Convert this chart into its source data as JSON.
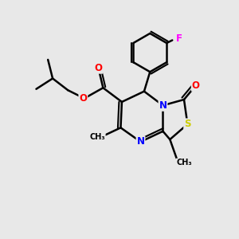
{
  "background_color": "#e8e8e8",
  "atom_colors": {
    "C": "#000000",
    "N": "#0000ff",
    "O": "#ff0000",
    "S": "#cccc00",
    "F": "#ff00ff"
  },
  "bond_color": "#000000",
  "bond_width": 1.8,
  "figsize": [
    3.0,
    3.0
  ],
  "dpi": 100
}
